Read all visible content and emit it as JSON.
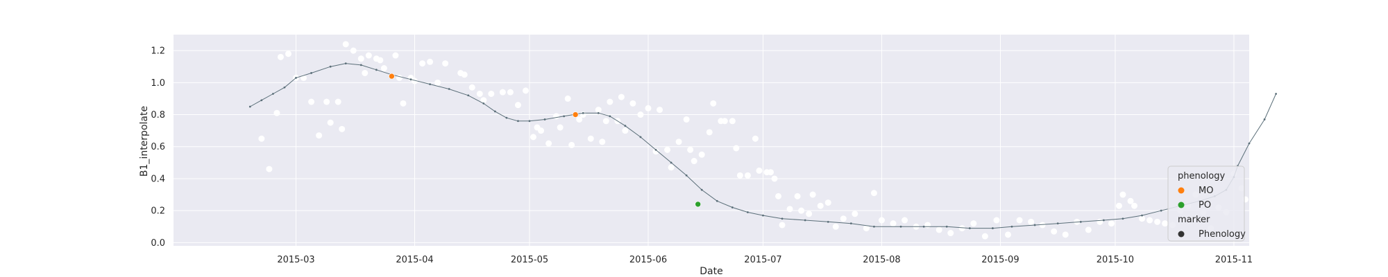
{
  "chart_data": {
    "type": "scatter",
    "xlabel": "Date",
    "ylabel": "B1_interpolate",
    "x_ticks": [
      "2015-03",
      "2015-04",
      "2015-05",
      "2015-06",
      "2015-07",
      "2015-08",
      "2015-09",
      "2015-10",
      "2015-11"
    ],
    "y_ticks": [
      "0.0",
      "0.2",
      "0.4",
      "0.6",
      "0.8",
      "1.0",
      "1.2"
    ],
    "xlim": [
      "2015-01-28",
      "2015-11-05"
    ],
    "ylim": [
      -0.02,
      1.3
    ],
    "grid": true,
    "background": "#eaeaf2",
    "raw_points_color": "#ffffff",
    "line_color": "#5a6e78",
    "smoothed_curve": [
      [
        "2015-02-17",
        0.85
      ],
      [
        "2015-02-20",
        0.89
      ],
      [
        "2015-02-23",
        0.93
      ],
      [
        "2015-02-26",
        0.97
      ],
      [
        "2015-03-01",
        1.03
      ],
      [
        "2015-03-05",
        1.06
      ],
      [
        "2015-03-10",
        1.1
      ],
      [
        "2015-03-14",
        1.12
      ],
      [
        "2015-03-18",
        1.11
      ],
      [
        "2015-03-22",
        1.08
      ],
      [
        "2015-03-26",
        1.05
      ],
      [
        "2015-03-31",
        1.02
      ],
      [
        "2015-04-05",
        0.99
      ],
      [
        "2015-04-10",
        0.96
      ],
      [
        "2015-04-15",
        0.92
      ],
      [
        "2015-04-19",
        0.87
      ],
      [
        "2015-04-22",
        0.82
      ],
      [
        "2015-04-25",
        0.78
      ],
      [
        "2015-04-28",
        0.76
      ],
      [
        "2015-05-01",
        0.76
      ],
      [
        "2015-05-05",
        0.77
      ],
      [
        "2015-05-10",
        0.79
      ],
      [
        "2015-05-15",
        0.81
      ],
      [
        "2015-05-19",
        0.81
      ],
      [
        "2015-05-22",
        0.79
      ],
      [
        "2015-05-26",
        0.73
      ],
      [
        "2015-05-30",
        0.66
      ],
      [
        "2015-06-03",
        0.58
      ],
      [
        "2015-06-07",
        0.5
      ],
      [
        "2015-06-11",
        0.42
      ],
      [
        "2015-06-15",
        0.33
      ],
      [
        "2015-06-19",
        0.26
      ],
      [
        "2015-06-23",
        0.22
      ],
      [
        "2015-06-27",
        0.19
      ],
      [
        "2015-07-01",
        0.17
      ],
      [
        "2015-07-06",
        0.15
      ],
      [
        "2015-07-12",
        0.14
      ],
      [
        "2015-07-18",
        0.13
      ],
      [
        "2015-07-24",
        0.12
      ],
      [
        "2015-07-30",
        0.1
      ],
      [
        "2015-08-06",
        0.1
      ],
      [
        "2015-08-12",
        0.1
      ],
      [
        "2015-08-18",
        0.1
      ],
      [
        "2015-08-24",
        0.09
      ],
      [
        "2015-08-30",
        0.09
      ],
      [
        "2015-09-04",
        0.1
      ],
      [
        "2015-09-10",
        0.11
      ],
      [
        "2015-09-16",
        0.12
      ],
      [
        "2015-09-22",
        0.13
      ],
      [
        "2015-09-28",
        0.14
      ],
      [
        "2015-10-03",
        0.15
      ],
      [
        "2015-10-08",
        0.17
      ],
      [
        "2015-10-13",
        0.2
      ],
      [
        "2015-10-18",
        0.23
      ],
      [
        "2015-10-23",
        0.26
      ],
      [
        "2015-10-27",
        0.29
      ],
      [
        "2015-10-30",
        0.33
      ],
      [
        "2015-11-01",
        0.41
      ],
      [
        "2015-11-02",
        0.48
      ],
      [
        "2015-11-05",
        0.62
      ],
      [
        "2015-11-09",
        0.77
      ],
      [
        "2015-11-12",
        0.93
      ]
    ],
    "raw_points": [
      [
        "2015-02-20",
        0.65
      ],
      [
        "2015-02-22",
        0.46
      ],
      [
        "2015-02-24",
        0.81
      ],
      [
        "2015-02-25",
        1.16
      ],
      [
        "2015-02-27",
        1.18
      ],
      [
        "2015-03-01",
        1.03
      ],
      [
        "2015-03-03",
        1.03
      ],
      [
        "2015-03-05",
        0.88
      ],
      [
        "2015-03-07",
        0.67
      ],
      [
        "2015-03-09",
        0.88
      ],
      [
        "2015-03-10",
        0.75
      ],
      [
        "2015-03-12",
        0.88
      ],
      [
        "2015-03-13",
        0.71
      ],
      [
        "2015-03-14",
        1.24
      ],
      [
        "2015-03-16",
        1.2
      ],
      [
        "2015-03-18",
        1.15
      ],
      [
        "2015-03-19",
        1.06
      ],
      [
        "2015-03-20",
        1.17
      ],
      [
        "2015-03-22",
        1.15
      ],
      [
        "2015-03-23",
        1.14
      ],
      [
        "2015-03-24",
        1.09
      ],
      [
        "2015-03-27",
        1.17
      ],
      [
        "2015-03-28",
        1.03
      ],
      [
        "2015-03-29",
        0.87
      ],
      [
        "2015-03-31",
        1.03
      ],
      [
        "2015-04-01",
        1.01
      ],
      [
        "2015-04-03",
        1.12
      ],
      [
        "2015-04-05",
        1.13
      ],
      [
        "2015-04-07",
        1.0
      ],
      [
        "2015-04-09",
        1.12
      ],
      [
        "2015-04-13",
        1.06
      ],
      [
        "2015-04-14",
        1.05
      ],
      [
        "2015-04-16",
        0.97
      ],
      [
        "2015-04-18",
        0.93
      ],
      [
        "2015-04-19",
        0.89
      ],
      [
        "2015-04-21",
        0.93
      ],
      [
        "2015-04-24",
        0.94
      ],
      [
        "2015-04-26",
        0.94
      ],
      [
        "2015-04-28",
        0.86
      ],
      [
        "2015-04-30",
        0.95
      ],
      [
        "2015-05-02",
        0.66
      ],
      [
        "2015-05-03",
        0.72
      ],
      [
        "2015-05-04",
        0.7
      ],
      [
        "2015-05-06",
        0.62
      ],
      [
        "2015-05-08",
        0.79
      ],
      [
        "2015-05-09",
        0.72
      ],
      [
        "2015-05-11",
        0.9
      ],
      [
        "2015-05-12",
        0.61
      ],
      [
        "2015-05-14",
        0.77
      ],
      [
        "2015-05-15",
        0.8
      ],
      [
        "2015-05-17",
        0.65
      ],
      [
        "2015-05-19",
        0.83
      ],
      [
        "2015-05-20",
        0.63
      ],
      [
        "2015-05-21",
        0.76
      ],
      [
        "2015-05-22",
        0.88
      ],
      [
        "2015-05-24",
        0.76
      ],
      [
        "2015-05-25",
        0.91
      ],
      [
        "2015-05-26",
        0.7
      ],
      [
        "2015-05-28",
        0.87
      ],
      [
        "2015-05-30",
        0.8
      ],
      [
        "2015-06-01",
        0.84
      ],
      [
        "2015-06-03",
        0.57
      ],
      [
        "2015-06-04",
        0.83
      ],
      [
        "2015-06-06",
        0.58
      ],
      [
        "2015-06-07",
        0.47
      ],
      [
        "2015-06-09",
        0.63
      ],
      [
        "2015-06-11",
        0.77
      ],
      [
        "2015-06-12",
        0.58
      ],
      [
        "2015-06-13",
        0.51
      ],
      [
        "2015-06-15",
        0.55
      ],
      [
        "2015-06-17",
        0.69
      ],
      [
        "2015-06-18",
        0.87
      ],
      [
        "2015-06-20",
        0.76
      ],
      [
        "2015-06-21",
        0.76
      ],
      [
        "2015-06-23",
        0.76
      ],
      [
        "2015-06-24",
        0.59
      ],
      [
        "2015-06-25",
        0.42
      ],
      [
        "2015-06-27",
        0.42
      ],
      [
        "2015-06-29",
        0.65
      ],
      [
        "2015-06-30",
        0.45
      ],
      [
        "2015-07-02",
        0.44
      ],
      [
        "2015-07-03",
        0.44
      ],
      [
        "2015-07-04",
        0.4
      ],
      [
        "2015-07-05",
        0.29
      ],
      [
        "2015-07-06",
        0.11
      ],
      [
        "2015-07-08",
        0.21
      ],
      [
        "2015-07-10",
        0.29
      ],
      [
        "2015-07-11",
        0.2
      ],
      [
        "2015-07-13",
        0.18
      ],
      [
        "2015-07-14",
        0.3
      ],
      [
        "2015-07-16",
        0.23
      ],
      [
        "2015-07-18",
        0.25
      ],
      [
        "2015-07-20",
        0.1
      ],
      [
        "2015-07-22",
        0.15
      ],
      [
        "2015-07-25",
        0.18
      ],
      [
        "2015-07-28",
        0.09
      ],
      [
        "2015-07-30",
        0.31
      ],
      [
        "2015-08-01",
        0.14
      ],
      [
        "2015-08-04",
        0.12
      ],
      [
        "2015-08-07",
        0.14
      ],
      [
        "2015-08-10",
        0.1
      ],
      [
        "2015-08-13",
        0.11
      ],
      [
        "2015-08-16",
        0.08
      ],
      [
        "2015-08-19",
        0.06
      ],
      [
        "2015-08-22",
        0.09
      ],
      [
        "2015-08-25",
        0.12
      ],
      [
        "2015-08-28",
        0.04
      ],
      [
        "2015-08-31",
        0.14
      ],
      [
        "2015-09-03",
        0.05
      ],
      [
        "2015-09-06",
        0.14
      ],
      [
        "2015-09-09",
        0.13
      ],
      [
        "2015-09-12",
        0.11
      ],
      [
        "2015-09-15",
        0.07
      ],
      [
        "2015-09-18",
        0.05
      ],
      [
        "2015-09-21",
        0.13
      ],
      [
        "2015-09-24",
        0.08
      ],
      [
        "2015-09-27",
        0.13
      ],
      [
        "2015-09-30",
        0.12
      ],
      [
        "2015-10-02",
        0.23
      ],
      [
        "2015-10-03",
        0.3
      ],
      [
        "2015-10-05",
        0.26
      ],
      [
        "2015-10-06",
        0.23
      ],
      [
        "2015-10-08",
        0.15
      ],
      [
        "2015-10-10",
        0.14
      ],
      [
        "2015-10-12",
        0.13
      ],
      [
        "2015-10-14",
        0.12
      ],
      [
        "2015-10-16",
        0.11
      ],
      [
        "2015-10-18",
        0.2
      ],
      [
        "2015-10-20",
        0.23
      ],
      [
        "2015-10-22",
        0.3
      ],
      [
        "2015-10-24",
        0.19
      ],
      [
        "2015-10-26",
        0.09
      ],
      [
        "2015-10-28",
        0.22
      ],
      [
        "2015-10-30",
        0.19
      ],
      [
        "2015-11-01",
        0.43
      ],
      [
        "2015-11-03",
        0.34
      ],
      [
        "2015-11-04",
        0.27
      ],
      [
        "2015-11-06",
        0.26
      ],
      [
        "2015-11-07",
        0.21
      ],
      [
        "2015-11-08",
        0.28
      ]
    ],
    "phenology_points": [
      {
        "date": "2015-03-26",
        "value": 1.04,
        "phenology": "MO"
      },
      {
        "date": "2015-05-13",
        "value": 0.8,
        "phenology": "MO"
      },
      {
        "date": "2015-06-14",
        "value": 0.24,
        "phenology": "PO"
      }
    ],
    "legend": {
      "position": "lower-right",
      "hue_title": "phenology",
      "hue_entries": [
        {
          "label": "MO",
          "color": "#ff7f0e"
        },
        {
          "label": "PO",
          "color": "#2ca02c"
        }
      ],
      "style_title": "marker",
      "style_entries": [
        {
          "label": "Phenology",
          "color": "#333333"
        }
      ]
    }
  }
}
